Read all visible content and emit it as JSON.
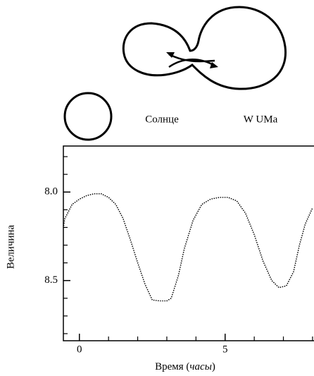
{
  "diagram": {
    "star_labels": [
      "Солнце",
      "W UMa"
    ]
  },
  "chart_data": {
    "type": "line",
    "y_label": "Величина",
    "x_label": [
      "Время (",
      "часы",
      ")"
    ],
    "x": [
      -0.55,
      -0.5,
      -0.25,
      0,
      0.25,
      0.5,
      0.75,
      1.0,
      1.25,
      1.5,
      1.75,
      2.0,
      2.25,
      2.5,
      2.75,
      3.0,
      3.15,
      3.4,
      3.6,
      3.9,
      4.2,
      4.5,
      4.8,
      5.1,
      5.4,
      5.7,
      6.0,
      6.3,
      6.6,
      6.85,
      7.1,
      7.35,
      7.55,
      7.75,
      8.0
    ],
    "values": [
      8.2,
      8.15,
      8.07,
      8.04,
      8.02,
      8.01,
      8.01,
      8.03,
      8.07,
      8.15,
      8.27,
      8.4,
      8.52,
      8.61,
      8.615,
      8.615,
      8.6,
      8.47,
      8.32,
      8.16,
      8.07,
      8.04,
      8.03,
      8.03,
      8.05,
      8.12,
      8.24,
      8.39,
      8.5,
      8.54,
      8.53,
      8.45,
      8.3,
      8.18,
      8.09
    ],
    "color": "#000000",
    "line_style": "dotted",
    "xlim": [
      -0.55,
      8.05
    ],
    "xticks": [
      0,
      5
    ],
    "xminor": [
      1,
      2,
      3,
      4,
      6,
      7,
      8
    ],
    "ylim": [
      8.84,
      7.74
    ],
    "yticks": [
      {
        "value": 8.0,
        "label": "8.0"
      },
      8.5
    ],
    "yminor": [
      7.8,
      7.9,
      8.1,
      8.2,
      8.3,
      8.4,
      8.6,
      8.7,
      8.8
    ],
    "grid": false
  }
}
